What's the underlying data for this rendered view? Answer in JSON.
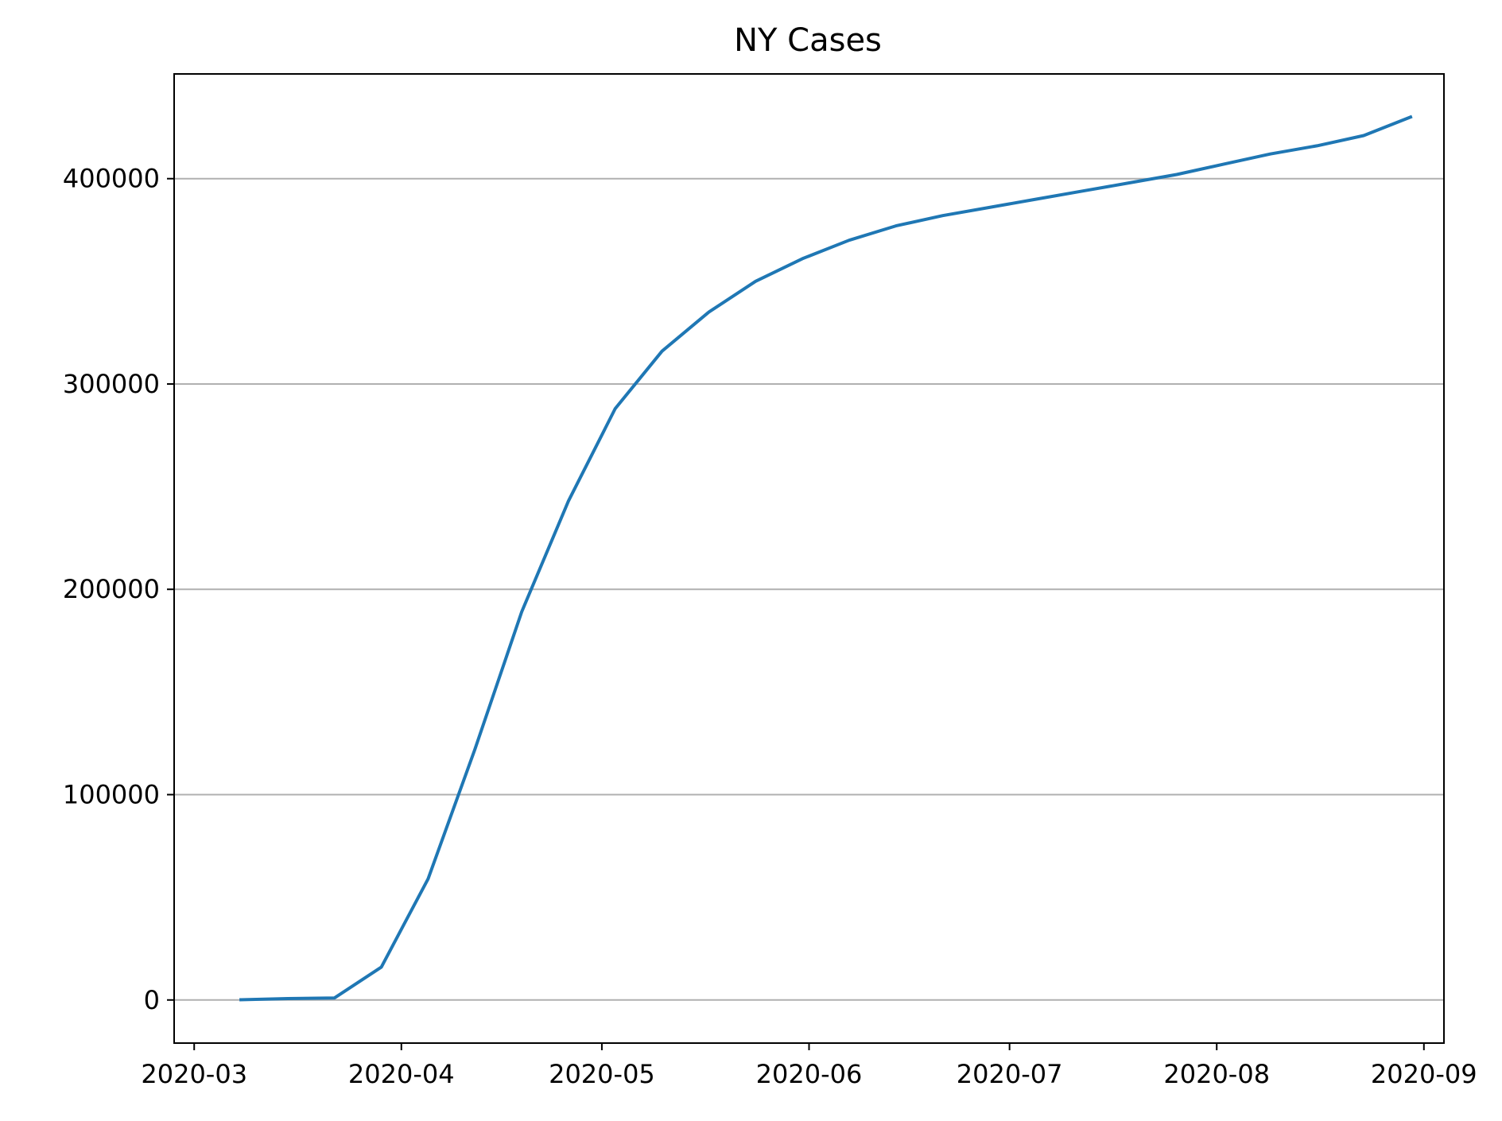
{
  "chart_data": {
    "type": "line",
    "title": "NY Cases",
    "xlabel": "",
    "ylabel": "",
    "x_axis": {
      "type": "date",
      "range": [
        "2020-02-27",
        "2020-09-04"
      ],
      "ticks": [
        "2020-03-01",
        "2020-04-01",
        "2020-05-01",
        "2020-06-01",
        "2020-07-01",
        "2020-08-01",
        "2020-09-01"
      ],
      "tick_labels": [
        "2020-03",
        "2020-04",
        "2020-05",
        "2020-06",
        "2020-07",
        "2020-08",
        "2020-09"
      ]
    },
    "y_axis": {
      "range": [
        -21000,
        451000
      ],
      "ticks": [
        0,
        100000,
        200000,
        300000,
        400000
      ],
      "tick_labels": [
        "0",
        "100000",
        "200000",
        "300000",
        "400000"
      ]
    },
    "grid": {
      "y": true,
      "x": false
    },
    "colors": {
      "line": "#1f77b4",
      "grid": "#b0b0b0",
      "axes": "#000000"
    },
    "series": [
      {
        "x": [
          "2020-03-08",
          "2020-03-15",
          "2020-03-22",
          "2020-03-29",
          "2020-04-05",
          "2020-04-12",
          "2020-04-19",
          "2020-04-26",
          "2020-05-03",
          "2020-05-10",
          "2020-05-17",
          "2020-05-24",
          "2020-05-31",
          "2020-06-07",
          "2020-06-14",
          "2020-06-21",
          "2020-06-28",
          "2020-07-05",
          "2020-07-12",
          "2020-07-19",
          "2020-07-26",
          "2020-08-02",
          "2020-08-09",
          "2020-08-16",
          "2020-08-23",
          "2020-08-30"
        ],
        "values": [
          100,
          700,
          1000,
          16000,
          59000,
          122000,
          189000,
          243000,
          288000,
          316000,
          335000,
          350000,
          361000,
          370000,
          377000,
          382000,
          386000,
          390000,
          394000,
          398000,
          402000,
          407000,
          412000,
          416000,
          421000,
          430000
        ]
      }
    ]
  }
}
